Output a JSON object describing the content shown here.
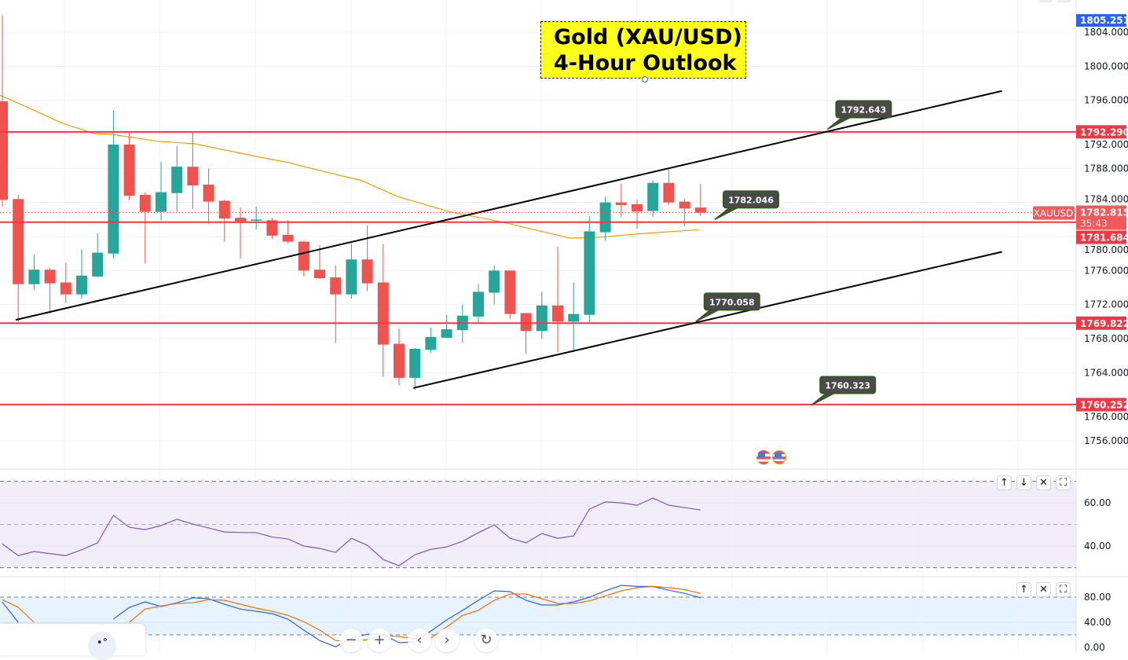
{
  "title": {
    "line1": "Gold (XAU/USD)",
    "line2": "4-Hour Outlook"
  },
  "symbol": "XAUUSD",
  "current_price": "1782.815",
  "countdown": "35:43",
  "high_marker": "1805.251",
  "colors": {
    "up": "#26a69a",
    "down": "#ef5350",
    "level": "#f23645",
    "ma": "#ff9800",
    "rsi": "#7e57c2",
    "stoch_k": "#2962ff",
    "stoch_d": "#ff6d00",
    "high_marker": "#2962ff",
    "callout_bg": "#4a4a4a",
    "callout_border": "#2f5a1e",
    "title_bg": "#ffff1a"
  },
  "chart_data": [
    {
      "type": "candlestick",
      "price_axis": {
        "ticks": [
          "1804.000",
          "1800.000",
          "1796.000",
          "1792.000",
          "1788.000",
          "1784.000",
          "1780.000",
          "1776.000",
          "1772.000",
          "1768.000",
          "1764.000",
          "1760.000",
          "1756.000"
        ],
        "ylim": [
          1753,
          1808
        ]
      },
      "grid": true,
      "ohlc": [
        [
          1795.9,
          1806.0,
          1783.5,
          1784.3
        ],
        [
          1784.4,
          1784.9,
          1770.0,
          1774.4
        ],
        [
          1774.4,
          1777.9,
          1773.7,
          1776.1
        ],
        [
          1776.1,
          1776.3,
          1770.9,
          1774.5
        ],
        [
          1774.6,
          1776.9,
          1772.2,
          1773.2
        ],
        [
          1773.2,
          1778.5,
          1772.7,
          1775.4
        ],
        [
          1775.3,
          1780.4,
          1775.2,
          1778.1
        ],
        [
          1778.0,
          1794.8,
          1777.4,
          1790.8
        ],
        [
          1790.8,
          1792.2,
          1784.3,
          1784.8
        ],
        [
          1784.9,
          1785.2,
          1776.8,
          1782.9
        ],
        [
          1782.9,
          1788.8,
          1781.9,
          1785.2
        ],
        [
          1785.1,
          1790.6,
          1782.9,
          1788.2
        ],
        [
          1788.2,
          1792.3,
          1783.2,
          1786.0
        ],
        [
          1786.1,
          1788.0,
          1781.5,
          1784.1
        ],
        [
          1784.2,
          1784.3,
          1779.4,
          1782.1
        ],
        [
          1782.2,
          1783.4,
          1777.4,
          1781.8
        ],
        [
          1781.9,
          1783.5,
          1780.8,
          1782.0
        ],
        [
          1781.9,
          1782.2,
          1779.7,
          1780.1
        ],
        [
          1780.2,
          1781.9,
          1779.2,
          1779.4
        ],
        [
          1779.4,
          1779.5,
          1775.3,
          1776.0
        ],
        [
          1776.1,
          1779.0,
          1775.0,
          1775.1
        ],
        [
          1775.2,
          1776.6,
          1767.5,
          1773.2
        ],
        [
          1773.2,
          1779.2,
          1772.7,
          1777.3
        ],
        [
          1777.3,
          1781.3,
          1773.6,
          1774.5
        ],
        [
          1774.6,
          1779.1,
          1763.5,
          1767.3
        ],
        [
          1767.4,
          1769.2,
          1762.5,
          1763.4
        ],
        [
          1763.4,
          1766.9,
          1762.0,
          1766.8
        ],
        [
          1766.7,
          1769.3,
          1766.3,
          1768.2
        ],
        [
          1768.1,
          1770.8,
          1768.1,
          1769.1
        ],
        [
          1769.0,
          1772.0,
          1767.5,
          1770.7
        ],
        [
          1770.6,
          1774.4,
          1769.9,
          1773.5
        ],
        [
          1773.4,
          1776.6,
          1772.0,
          1776.0
        ],
        [
          1776.0,
          1776.0,
          1770.3,
          1770.9
        ],
        [
          1771.0,
          1771.0,
          1766.2,
          1768.9
        ],
        [
          1768.9,
          1773.5,
          1768.0,
          1771.9
        ],
        [
          1771.9,
          1778.8,
          1766.4,
          1770.0
        ],
        [
          1770.0,
          1774.6,
          1766.4,
          1770.9
        ],
        [
          1770.8,
          1782.4,
          1769.9,
          1780.6
        ],
        [
          1780.5,
          1784.7,
          1779.5,
          1784.0
        ],
        [
          1784.0,
          1786.2,
          1782.3,
          1783.7
        ],
        [
          1783.8,
          1784.3,
          1780.9,
          1782.95
        ],
        [
          1783.0,
          1786.6,
          1782.3,
          1786.3
        ],
        [
          1786.3,
          1787.9,
          1783.7,
          1784.0
        ],
        [
          1784.1,
          1784.4,
          1781.2,
          1783.3
        ],
        [
          1783.4,
          1786.2,
          1782.4,
          1782.8
        ]
      ],
      "moving_average": [
        [
          -0.15,
          1796.6
        ],
        [
          1.2,
          1795.5
        ],
        [
          3.8,
          1793.3
        ],
        [
          5.8,
          1792.1
        ],
        [
          6.9,
          1792.0
        ],
        [
          9.75,
          1791.2
        ],
        [
          12.1,
          1790.9
        ],
        [
          16.3,
          1789.3
        ],
        [
          18.0,
          1788.7
        ],
        [
          21.0,
          1787.3
        ],
        [
          22.6,
          1786.6
        ],
        [
          24.9,
          1784.7
        ],
        [
          28.2,
          1782.9
        ],
        [
          31.5,
          1781.7
        ],
        [
          35.8,
          1779.8
        ],
        [
          37.5,
          1779.9
        ],
        [
          40.0,
          1780.3
        ],
        [
          43.9,
          1780.8
        ]
      ],
      "horizontal_levels": [
        "1792.290",
        "1781.684",
        "1769.822",
        "1760.252"
      ],
      "trendlines": [
        {
          "from": [
            0.84,
            1770.2
          ],
          "to": [
            63,
            1797.1
          ]
        },
        {
          "from": [
            25.9,
            1762.2
          ],
          "to": [
            63,
            1778.2
          ]
        }
      ],
      "callouts": [
        {
          "text": "1792.643",
          "at": [
            52.0,
            1792.6
          ]
        },
        {
          "text": "1782.046",
          "at": [
            44.9,
            1782.0
          ]
        },
        {
          "text": "1770.058",
          "at": [
            43.7,
            1770.0
          ]
        },
        {
          "text": "1760.323",
          "at": [
            51.0,
            1760.2
          ]
        }
      ]
    },
    {
      "type": "line",
      "pane": "rsi",
      "ticks": [
        "60.00",
        "40.00"
      ],
      "bands": [
        70,
        50,
        30
      ],
      "values": [
        41,
        35.6,
        37.5,
        36.5,
        35.6,
        38.3,
        41.5,
        54.2,
        48.7,
        47.6,
        49.5,
        52.4,
        50.2,
        48.4,
        46.5,
        46.3,
        46.2,
        44.2,
        43.3,
        40.0,
        38.9,
        37.1,
        43.6,
        40.4,
        33.8,
        30.9,
        36.0,
        38.5,
        39.6,
        42.2,
        46.2,
        49.8,
        43.6,
        41.5,
        45.8,
        43.6,
        44.7,
        57.1,
        60.4,
        60.0,
        58.9,
        62.2,
        58.9,
        57.8,
        56.7
      ]
    },
    {
      "type": "line",
      "pane": "stochastic",
      "ticks": [
        "80.00",
        "40.00",
        "0.00"
      ],
      "bands": [
        80,
        20
      ],
      "series": [
        {
          "values": [
            72,
            40,
            null,
            null,
            null,
            null,
            null,
            45,
            63.75,
            72.5,
            65,
            71,
            79,
            77.5,
            68.75,
            61,
            57.5,
            53.75,
            45,
            27.5,
            11,
            1,
            15,
            21,
            21,
            7.5,
            8.75,
            26,
            43.75,
            59,
            75,
            90,
            88.75,
            75,
            67.5,
            67.5,
            72.5,
            80,
            90,
            98.75,
            97,
            97,
            91,
            86,
            79
          ]
        },
        {
          "values": [
            76,
            63.75,
            40,
            null,
            null,
            null,
            null,
            null,
            40,
            61,
            66,
            70,
            71,
            76,
            75,
            68.75,
            62.5,
            57.5,
            51,
            41,
            27.5,
            11,
            9,
            12.5,
            19,
            17.5,
            14,
            15,
            32.5,
            51,
            59,
            75,
            85,
            85,
            77.5,
            70,
            70,
            74,
            82,
            90,
            95,
            97,
            95,
            92,
            86
          ]
        }
      ]
    }
  ],
  "pane_controls": {
    "rsi": [
      "arrow-up-icon",
      "arrow-down-icon",
      "close-icon",
      "maximize-icon"
    ],
    "stochastic": [
      "arrow-up-icon",
      "close-icon",
      "maximize-icon"
    ]
  },
  "nav_controls": [
    "zoom-out-icon",
    "zoom-in-icon",
    "scroll-left-icon",
    "scroll-right-icon",
    "reset-icon"
  ],
  "glyphs": {
    "up": "↑",
    "down": "↓",
    "close": "✕",
    "maximize": "⛶",
    "minus": "−",
    "plus": "+",
    "left": "‹",
    "right": "›",
    "reset": "↻"
  }
}
